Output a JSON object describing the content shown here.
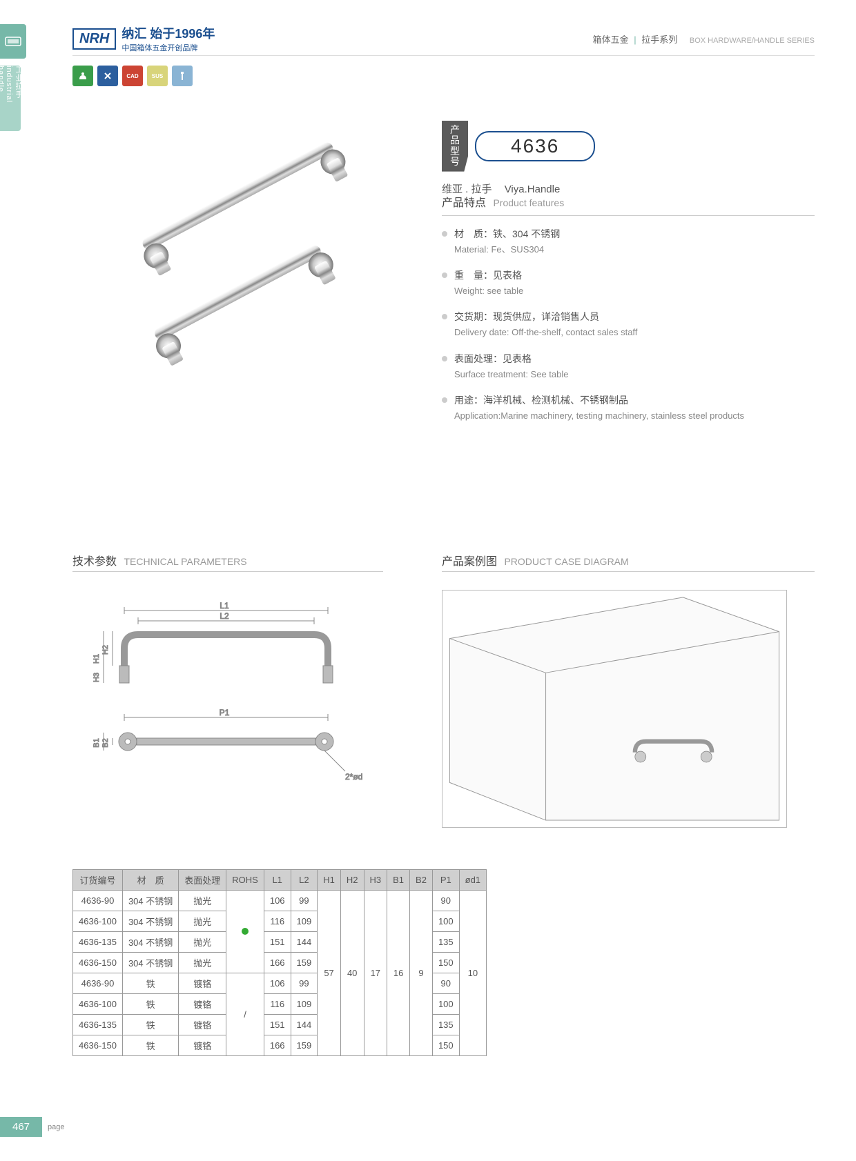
{
  "header": {
    "logo": "NRH",
    "logo_cn": "纳汇 始于1996年",
    "logo_sub": "中国箱体五金开创品牌",
    "cat_cn": "箱体五金",
    "cat_sep": "|",
    "cat_series": "拉手系列",
    "cat_en": "BOX HARDWARE/HANDLE SERIES"
  },
  "side": {
    "label": "工业拉手 industrial handle"
  },
  "icons": [
    "#3a9d4a",
    "#2c5f9e",
    "#c43",
    "#d8d47a",
    "#8ab4d4"
  ],
  "model": {
    "label": "产品型号",
    "number": "4636",
    "name_cn": "维亚 . 拉手",
    "name_en": "Viya.Handle"
  },
  "features": {
    "title_cn": "产品特点",
    "title_en": "Product features",
    "items": [
      {
        "cn": "材　质：铁、304 不锈钢",
        "en": "Material: Fe、SUS304"
      },
      {
        "cn": "重　量：见表格",
        "en": "Weight: see table"
      },
      {
        "cn": "交货期：现货供应，详洽销售人员",
        "en": "Delivery date: Off-the-shelf, contact sales staff"
      },
      {
        "cn": "表面处理：见表格",
        "en": "Surface treatment: See table"
      },
      {
        "cn": "用途：海洋机械、检测机械、不锈钢制品",
        "en": "Application:Marine machinery, testing machinery, stainless steel products"
      }
    ]
  },
  "tech": {
    "title_cn": "技术参数",
    "title_en": "TECHNICAL PARAMETERS",
    "labels": {
      "L1": "L1",
      "L2": "L2",
      "H1": "H1",
      "H2": "H2",
      "H3": "H3",
      "P1": "P1",
      "B1": "B1",
      "B2": "B2",
      "d1": "2*ød1"
    }
  },
  "case": {
    "title_cn": "产品案例图",
    "title_en": "PRODUCT CASE DIAGRAM"
  },
  "table": {
    "headers": [
      "订货编号",
      "材　质",
      "表面处理",
      "ROHS",
      "L1",
      "L2",
      "H1",
      "H2",
      "H3",
      "B1",
      "B2",
      "P1",
      "ød1"
    ],
    "rows": [
      [
        "4636-90",
        "304 不锈钢",
        "抛光",
        "",
        "106",
        "99",
        "",
        "",
        "",
        "",
        "",
        "90",
        ""
      ],
      [
        "4636-100",
        "304 不锈钢",
        "抛光",
        "",
        "116",
        "109",
        "",
        "",
        "",
        "",
        "",
        "100",
        ""
      ],
      [
        "4636-135",
        "304 不锈钢",
        "抛光",
        "",
        "151",
        "144",
        "",
        "",
        "",
        "",
        "",
        "135",
        ""
      ],
      [
        "4636-150",
        "304 不锈钢",
        "抛光",
        "",
        "166",
        "159",
        "",
        "",
        "",
        "",
        "",
        "150",
        ""
      ],
      [
        "4636-90",
        "铁",
        "镀铬",
        "",
        "106",
        "99",
        "",
        "",
        "",
        "",
        "",
        "90",
        ""
      ],
      [
        "4636-100",
        "铁",
        "镀铬",
        "",
        "116",
        "109",
        "",
        "",
        "",
        "",
        "",
        "100",
        ""
      ],
      [
        "4636-135",
        "铁",
        "镀铬",
        "",
        "151",
        "144",
        "",
        "",
        "",
        "",
        "",
        "135",
        ""
      ],
      [
        "4636-150",
        "铁",
        "镀铬",
        "",
        "166",
        "159",
        "",
        "",
        "",
        "",
        "",
        "150",
        ""
      ]
    ],
    "merged": {
      "rohs1": "●",
      "rohs2": "/",
      "H1": "57",
      "H2": "40",
      "H3": "17",
      "B1": "16",
      "B2": "9",
      "d1": "10"
    }
  },
  "footer": {
    "page": "467",
    "label": "page"
  }
}
